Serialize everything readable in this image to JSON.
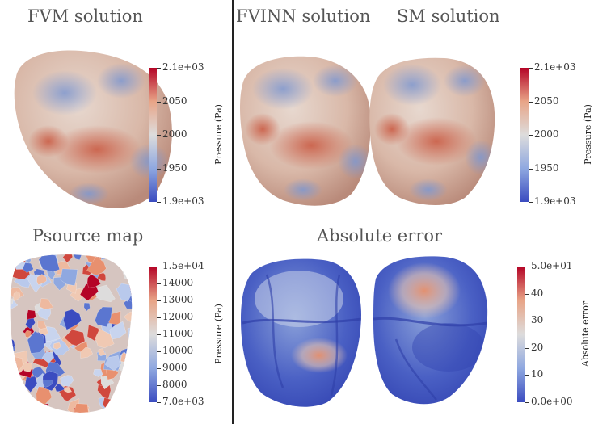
{
  "panels": {
    "fvm": {
      "title": "FVM solution"
    },
    "fvinn": {
      "title": "FVINN solution"
    },
    "sm": {
      "title": "SM solution"
    },
    "psource": {
      "title": "Psource map"
    },
    "abs_error": {
      "title": "Absolute error"
    }
  },
  "colorbars": {
    "pressure_top_left": {
      "label": "Pressure (Pa)",
      "ticks": [
        "2.1e+03",
        "2050",
        "2000",
        "1950",
        "1.9e+03"
      ],
      "range": [
        1900,
        2100
      ]
    },
    "pressure_top_right": {
      "label": "Pressure (Pa)",
      "ticks": [
        "2.1e+03",
        "2050",
        "2000",
        "1950",
        "1.9e+03"
      ],
      "range": [
        1900,
        2100
      ]
    },
    "psource": {
      "label": "Pressure (Pa)",
      "ticks": [
        "1.5e+04",
        "14000",
        "13000",
        "12000",
        "11000",
        "10000",
        "9000",
        "8000",
        "7.0e+03"
      ],
      "range": [
        7000,
        15000
      ]
    },
    "abs_error": {
      "label": "Absolute error",
      "ticks": [
        "5.0e+01",
        "40",
        "30",
        "20",
        "10",
        "0.0e+00"
      ],
      "range": [
        0,
        50
      ]
    }
  },
  "colors": {
    "cmap_high": "#b40426",
    "cmap_mid": "#dddcdc",
    "cmap_low": "#3b4cc0",
    "divider": "#222222"
  }
}
